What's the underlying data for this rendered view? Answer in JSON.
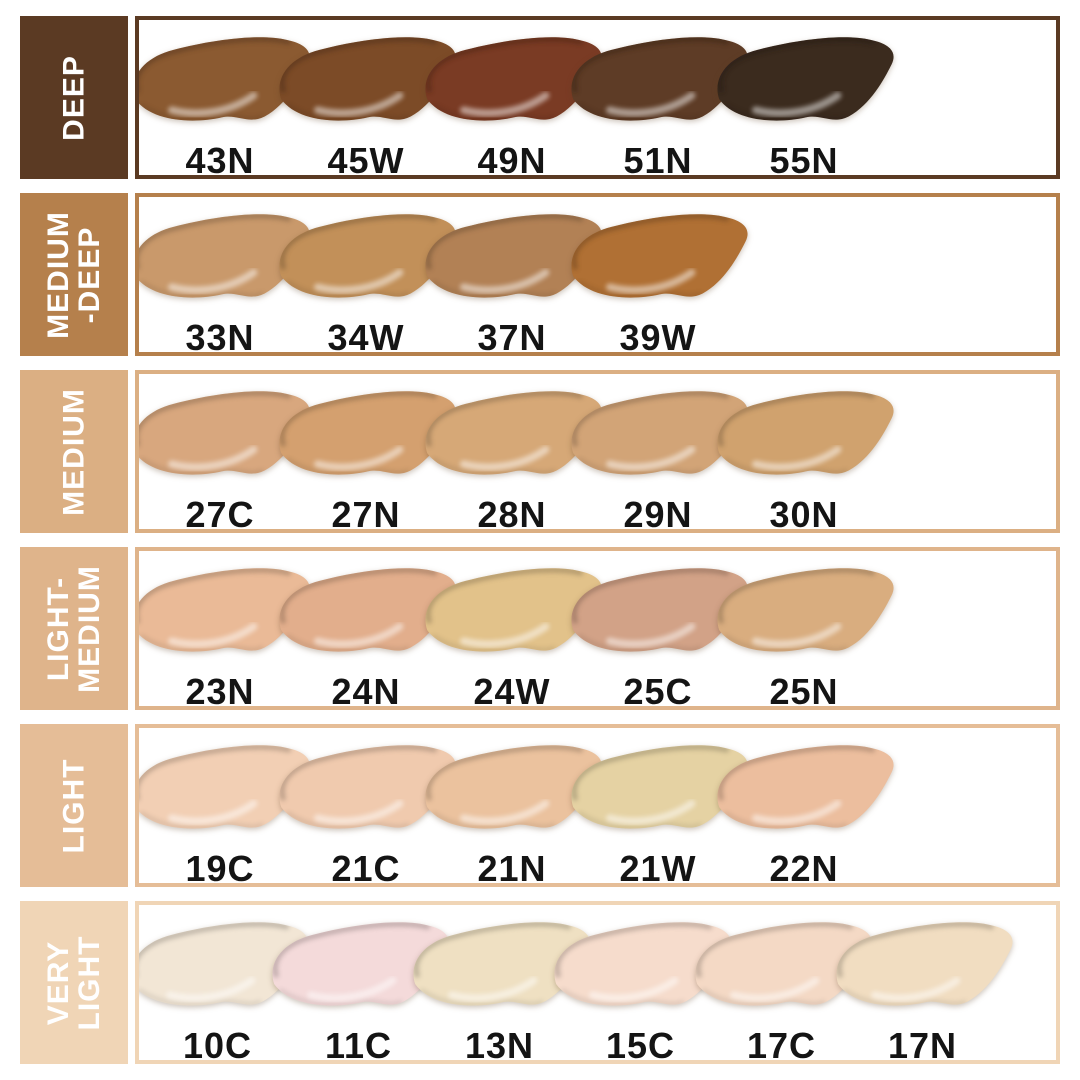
{
  "title": "foundation-shade-chart",
  "label_text_color": "#141414",
  "sidebar_text_color": "#ffffff",
  "rows": [
    {
      "name": "deep",
      "label": "DEEP",
      "color": "#5B3A23",
      "swatches": [
        {
          "code": "43N",
          "color": "#8B5A31"
        },
        {
          "code": "45W",
          "color": "#7C4B27"
        },
        {
          "code": "49N",
          "color": "#7A3B24"
        },
        {
          "code": "51N",
          "color": "#5E3C26"
        },
        {
          "code": "55N",
          "color": "#3B2B1E"
        }
      ]
    },
    {
      "name": "medium-deep",
      "label": "MEDIUM\n-DEEP",
      "color": "#B5804C",
      "swatches": [
        {
          "code": "33N",
          "color": "#C9996B"
        },
        {
          "code": "34W",
          "color": "#C29059"
        },
        {
          "code": "37N",
          "color": "#B28155"
        },
        {
          "code": "39W",
          "color": "#B07034"
        }
      ]
    },
    {
      "name": "medium",
      "label": "MEDIUM",
      "color": "#DBAF83",
      "swatches": [
        {
          "code": "27C",
          "color": "#D8A77E"
        },
        {
          "code": "27N",
          "color": "#D4A06F"
        },
        {
          "code": "28N",
          "color": "#D6A877"
        },
        {
          "code": "29N",
          "color": "#D2A477"
        },
        {
          "code": "30N",
          "color": "#D0A26E"
        }
      ]
    },
    {
      "name": "light-medium",
      "label": "LIGHT-\nMEDIUM",
      "color": "#DFB48B",
      "swatches": [
        {
          "code": "23N",
          "color": "#EABA97"
        },
        {
          "code": "24N",
          "color": "#E2AE8C"
        },
        {
          "code": "24W",
          "color": "#E2C28A"
        },
        {
          "code": "25C",
          "color": "#D2A287"
        },
        {
          "code": "25N",
          "color": "#D9AD7F"
        }
      ]
    },
    {
      "name": "light",
      "label": "LIGHT",
      "color": "#E5BD97",
      "swatches": [
        {
          "code": "19C",
          "color": "#F2CFB4"
        },
        {
          "code": "21C",
          "color": "#F0CAAE"
        },
        {
          "code": "21N",
          "color": "#EBC29E"
        },
        {
          "code": "21W",
          "color": "#E5D2A3"
        },
        {
          "code": "22N",
          "color": "#ECBE9E"
        }
      ]
    },
    {
      "name": "very-light",
      "label": "VERY\nLIGHT",
      "color": "#F0D5B6",
      "swatches": [
        {
          "code": "10C",
          "color": "#F2E6D5"
        },
        {
          "code": "11C",
          "color": "#F4DADA"
        },
        {
          "code": "13N",
          "color": "#EFE0C2"
        },
        {
          "code": "15C",
          "color": "#F6DCCC"
        },
        {
          "code": "17C",
          "color": "#F4D9C5"
        },
        {
          "code": "17N",
          "color": "#F1DDC1"
        }
      ]
    }
  ]
}
